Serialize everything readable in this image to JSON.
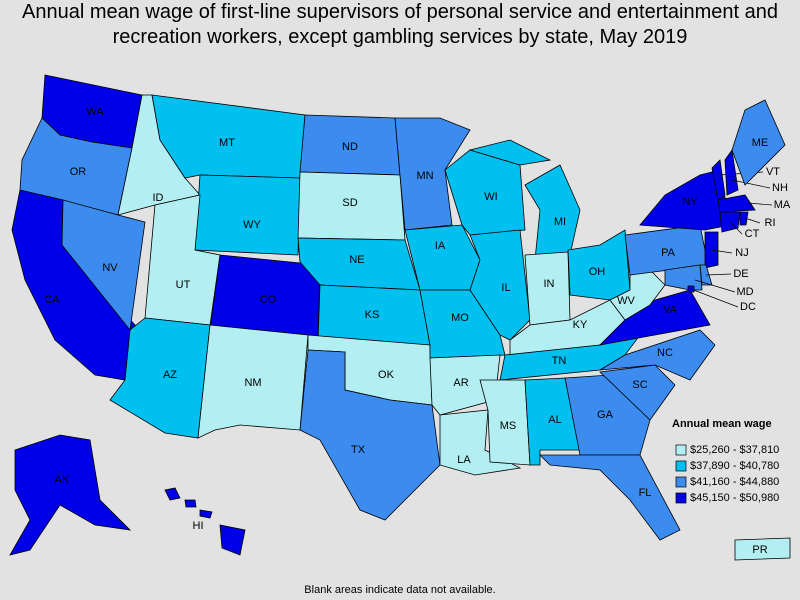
{
  "title": "Annual mean wage of first-line supervisors of personal service and entertainment and recreation workers, except gambling services by state, May 2019",
  "legend": {
    "title": "Annual mean wage",
    "entries": [
      {
        "label": "$25,260 - $37,810",
        "color": "#b3eff2"
      },
      {
        "label": "$37,890 - $40,780",
        "color": "#00c0f0"
      },
      {
        "label": "$41,160 - $44,880",
        "color": "#3c8cf0"
      },
      {
        "label": "$45,150 - $50,980",
        "color": "#0000e8"
      }
    ]
  },
  "states": [
    {
      "label": "WA",
      "color": "#0000e8"
    },
    {
      "label": "OR",
      "color": "#3c8cf0"
    },
    {
      "label": "CA",
      "color": "#0000e8"
    },
    {
      "label": "NV",
      "color": "#3c8cf0"
    },
    {
      "label": "ID",
      "color": "#b3eff2"
    },
    {
      "label": "MT",
      "color": "#00c0f0"
    },
    {
      "label": "WY",
      "color": "#00c0f0"
    },
    {
      "label": "UT",
      "color": "#b3eff2"
    },
    {
      "label": "CO",
      "color": "#0000e8"
    },
    {
      "label": "AZ",
      "color": "#00c0f0"
    },
    {
      "label": "NM",
      "color": "#b3eff2"
    },
    {
      "label": "ND",
      "color": "#3c8cf0"
    },
    {
      "label": "SD",
      "color": "#b3eff2"
    },
    {
      "label": "NE",
      "color": "#00c0f0"
    },
    {
      "label": "KS",
      "color": "#00c0f0"
    },
    {
      "label": "OK",
      "color": "#b3eff2"
    },
    {
      "label": "TX",
      "color": "#3c8cf0"
    },
    {
      "label": "MN",
      "color": "#3c8cf0"
    },
    {
      "label": "IA",
      "color": "#00c0f0"
    },
    {
      "label": "MO",
      "color": "#00c0f0"
    },
    {
      "label": "AR",
      "color": "#b3eff2"
    },
    {
      "label": "LA",
      "color": "#b3eff2"
    },
    {
      "label": "WI",
      "color": "#00c0f0"
    },
    {
      "label": "IL",
      "color": "#00c0f0"
    },
    {
      "label": "MI",
      "color": "#00c0f0"
    },
    {
      "label": "IN",
      "color": "#b3eff2"
    },
    {
      "label": "OH",
      "color": "#00c0f0"
    },
    {
      "label": "KY",
      "color": "#b3eff2"
    },
    {
      "label": "TN",
      "color": "#00c0f0"
    },
    {
      "label": "MS",
      "color": "#b3eff2"
    },
    {
      "label": "AL",
      "color": "#00c0f0"
    },
    {
      "label": "GA",
      "color": "#3c8cf0"
    },
    {
      "label": "FL",
      "color": "#3c8cf0"
    },
    {
      "label": "SC",
      "color": "#3c8cf0"
    },
    {
      "label": "NC",
      "color": "#3c8cf0"
    },
    {
      "label": "VA",
      "color": "#0000e8"
    },
    {
      "label": "WV",
      "color": "#b3eff2"
    },
    {
      "label": "PA",
      "color": "#3c8cf0"
    },
    {
      "label": "NY",
      "color": "#0000e8"
    },
    {
      "label": "VT",
      "color": "#0000e8"
    },
    {
      "label": "NH",
      "color": "#0000e8"
    },
    {
      "label": "ME",
      "color": "#3c8cf0"
    },
    {
      "label": "MA",
      "color": "#0000e8"
    },
    {
      "label": "CT",
      "color": "#0000e8"
    },
    {
      "label": "RI",
      "color": "#0000e8"
    },
    {
      "label": "NJ",
      "color": "#0000e8"
    },
    {
      "label": "DE",
      "color": "#3c8cf0"
    },
    {
      "label": "MD",
      "color": "#3c8cf0"
    },
    {
      "label": "DC",
      "color": "#0000e8"
    },
    {
      "label": "AK",
      "color": "#0000e8"
    },
    {
      "label": "HI",
      "color": "#0000e8"
    },
    {
      "label": "PR",
      "color": "#b3eff2"
    }
  ],
  "footnote": "Blank areas indicate data not available."
}
